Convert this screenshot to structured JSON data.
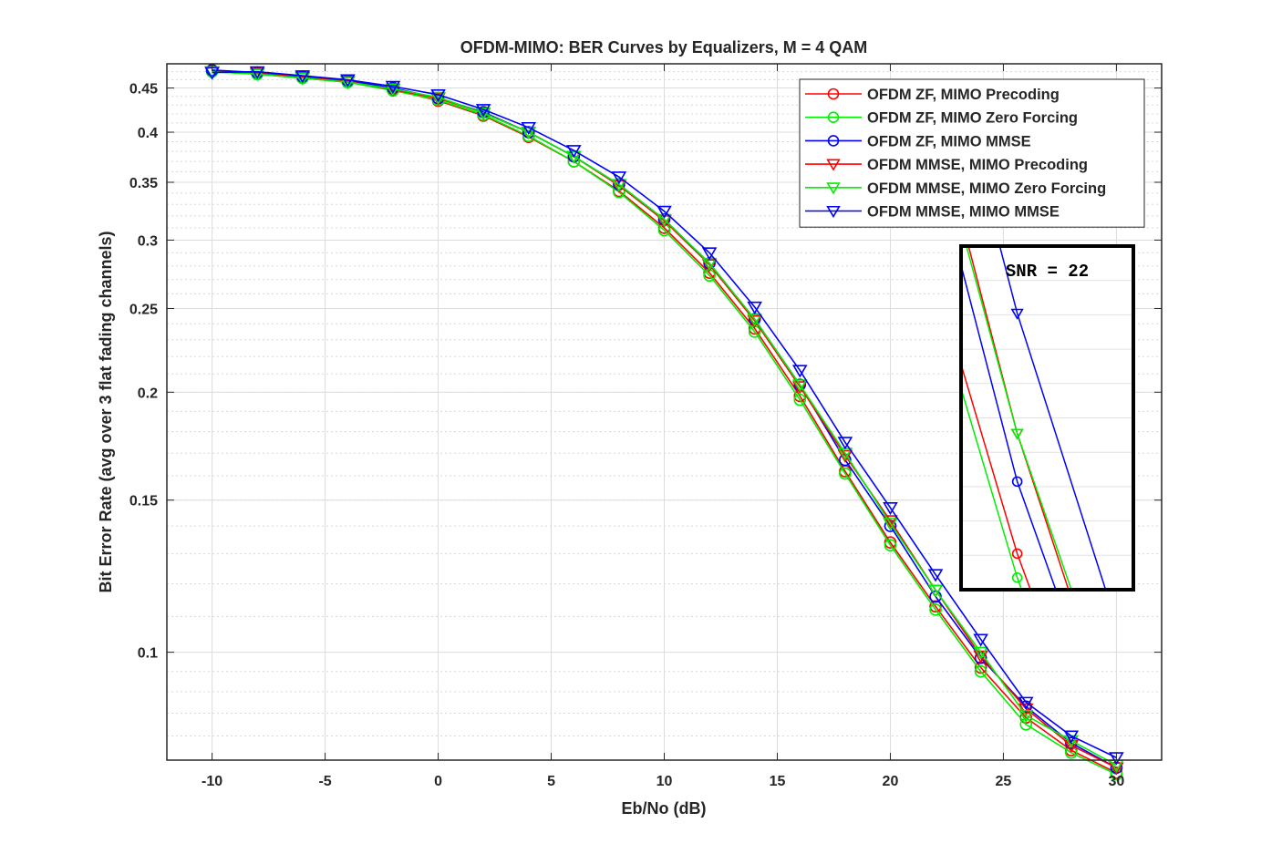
{
  "chart_data": {
    "type": "line",
    "title": "OFDM-MIMO: BER Curves by Equalizers, M = 4 QAM",
    "xlabel": "Eb/No (dB)",
    "ylabel": "Bit Error Rate (avg over 3 flat fading channels)",
    "xlim": [
      -12,
      32
    ],
    "ylim": [
      0.075,
      0.48
    ],
    "yscale": "log",
    "grid": true,
    "minor_grid": true,
    "legend_position": "top-right",
    "xticks": [
      -10,
      -5,
      0,
      5,
      10,
      15,
      20,
      25,
      30
    ],
    "xtick_labels": [
      "-10",
      "-5",
      "0",
      "5",
      "10",
      "15",
      "20",
      "25",
      "30"
    ],
    "yticks": [
      0.1,
      0.15,
      0.2,
      0.25,
      0.3,
      0.35,
      0.4,
      0.45
    ],
    "ytick_labels": [
      "0.1",
      "0.15",
      "0.2",
      "0.25",
      "0.3",
      "0.35",
      "0.4",
      "0.45"
    ],
    "x": [
      -10,
      -8,
      -6,
      -4,
      -2,
      0,
      2,
      4,
      6,
      8,
      10,
      12,
      14,
      16,
      18,
      20,
      22,
      24,
      26,
      28,
      30
    ],
    "series": [
      {
        "name": "OFDM ZF, MIMO Precoding",
        "color": "#ff0000",
        "marker": "circle",
        "values": [
          0.471,
          0.468,
          0.463,
          0.458,
          0.448,
          0.435,
          0.418,
          0.395,
          0.37,
          0.342,
          0.31,
          0.275,
          0.237,
          0.198,
          0.162,
          0.134,
          0.113,
          0.096,
          0.084,
          0.077,
          0.0725
        ]
      },
      {
        "name": "OFDM ZF, MIMO Zero Forcing",
        "color": "#00ee00",
        "marker": "circle",
        "values": [
          0.47,
          0.467,
          0.462,
          0.457,
          0.447,
          0.436,
          0.419,
          0.396,
          0.37,
          0.341,
          0.308,
          0.273,
          0.235,
          0.196,
          0.161,
          0.133,
          0.112,
          0.095,
          0.0825,
          0.0765,
          0.0722
        ]
      },
      {
        "name": "OFDM ZF, MIMO MMSE",
        "color": "#0000ff",
        "marker": "circle",
        "values": [
          0.472,
          0.469,
          0.464,
          0.459,
          0.45,
          0.438,
          0.422,
          0.4,
          0.375,
          0.348,
          0.317,
          0.282,
          0.243,
          0.204,
          0.167,
          0.14,
          0.116,
          0.0985,
          0.0865,
          0.0785,
          0.0735
        ]
      },
      {
        "name": "OFDM MMSE, MIMO Precoding",
        "color": "#ff0000",
        "marker": "triangle-down",
        "values": [
          0.47,
          0.468,
          0.463,
          0.458,
          0.448,
          0.438,
          0.421,
          0.4,
          0.375,
          0.347,
          0.316,
          0.281,
          0.242,
          0.203,
          0.169,
          0.142,
          0.118,
          0.099,
          0.086,
          0.078,
          0.0735
        ]
      },
      {
        "name": "OFDM MMSE, MIMO Zero Forcing",
        "color": "#00ee00",
        "marker": "triangle-down",
        "values": [
          0.47,
          0.467,
          0.462,
          0.457,
          0.449,
          0.439,
          0.421,
          0.4,
          0.375,
          0.348,
          0.317,
          0.282,
          0.243,
          0.204,
          0.17,
          0.141,
          0.118,
          0.1,
          0.0845,
          0.079,
          0.074
        ]
      },
      {
        "name": "OFDM MMSE, MIMO MMSE",
        "color": "#0000ff",
        "marker": "triangle-down",
        "values": [
          0.469,
          0.47,
          0.465,
          0.46,
          0.452,
          0.442,
          0.425,
          0.405,
          0.381,
          0.355,
          0.324,
          0.29,
          0.251,
          0.212,
          0.175,
          0.147,
          0.123,
          0.1035,
          0.0875,
          0.08,
          0.0755
        ]
      }
    ],
    "inset": {
      "label": "SNR = 22",
      "marker_x": 22
    }
  }
}
